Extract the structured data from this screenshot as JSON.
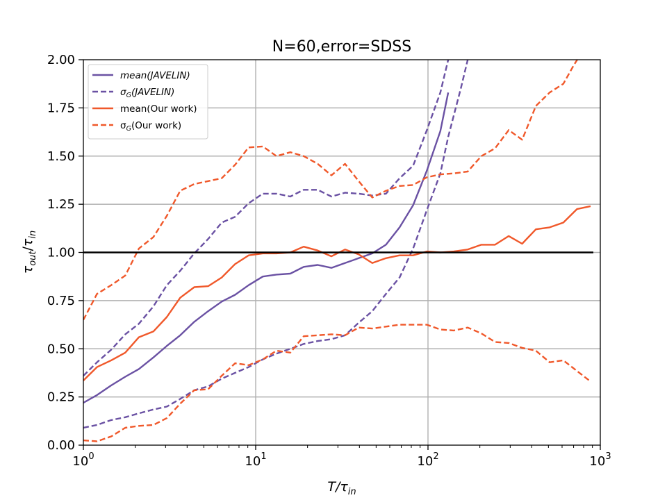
{
  "chart_data": {
    "type": "line",
    "title": "N=60,error=SDSS",
    "xlabel": {
      "base": "T/τ",
      "sub": "in"
    },
    "ylabel": {
      "num": "τ",
      "num_sub": "out",
      "den": "τ",
      "den_sub": "in"
    },
    "xscale": "log",
    "xlim": [
      1,
      1000
    ],
    "ylim": [
      0,
      2.0
    ],
    "xticks": [
      {
        "base": "10",
        "exp": "0"
      },
      {
        "base": "10",
        "exp": "1"
      },
      {
        "base": "10",
        "exp": "2"
      },
      {
        "base": "10",
        "exp": "3"
      }
    ],
    "yticks": [
      "0.00",
      "0.25",
      "0.50",
      "0.75",
      "1.00",
      "1.25",
      "1.50",
      "1.75",
      "2.00"
    ],
    "grid": true,
    "legend_position": "top-left",
    "reference_line": {
      "y": 1.0,
      "color": "#000000"
    },
    "colors": {
      "javelin": "#6a51a3",
      "ours": "#f0582a"
    },
    "series": [
      {
        "name": "mean(JAVELIN)",
        "legend": {
          "prefix": "mean",
          "sub": "",
          "suffix": "(JAVELIN)",
          "italic": true
        },
        "style": "solid",
        "color": "#6a51a3",
        "x": [
          1.0,
          1.2,
          1.45,
          1.75,
          2.1,
          2.55,
          3.05,
          3.65,
          4.4,
          5.3,
          6.35,
          7.6,
          9.1,
          11.0,
          13.2,
          15.9,
          19.0,
          22.9,
          27.5,
          33.0,
          39.6,
          47.5,
          57.0,
          68.4,
          82.0,
          98.5,
          118.0,
          131.0
        ],
        "y": [
          0.22,
          0.26,
          0.31,
          0.355,
          0.395,
          0.455,
          0.515,
          0.57,
          0.64,
          0.695,
          0.745,
          0.78,
          0.83,
          0.875,
          0.885,
          0.89,
          0.925,
          0.935,
          0.92,
          0.945,
          0.97,
          0.995,
          1.04,
          1.13,
          1.245,
          1.425,
          1.63,
          1.83
        ]
      },
      {
        "name": "σG(JAVELIN) upper",
        "legend": {
          "prefix": "σ",
          "sub": "G",
          "suffix": "(JAVELIN)",
          "italic": true
        },
        "style": "dashed",
        "color": "#6a51a3",
        "x": [
          1.0,
          1.2,
          1.45,
          1.75,
          2.1,
          2.55,
          3.05,
          3.65,
          4.4,
          5.3,
          6.35,
          7.6,
          9.1,
          11.0,
          13.2,
          15.9,
          19.0,
          22.9,
          27.5,
          33.0,
          39.6,
          47.5,
          57.0,
          68.4,
          82.0,
          98.5,
          118.0,
          131.0,
          155.0
        ],
        "y": [
          0.36,
          0.43,
          0.495,
          0.575,
          0.63,
          0.72,
          0.83,
          0.905,
          0.995,
          1.07,
          1.155,
          1.185,
          1.255,
          1.305,
          1.305,
          1.29,
          1.325,
          1.325,
          1.29,
          1.31,
          1.305,
          1.295,
          1.305,
          1.385,
          1.45,
          1.635,
          1.83,
          2.0,
          2.2
        ]
      },
      {
        "name": "σG(JAVELIN) lower",
        "style": "dashed",
        "color": "#6a51a3",
        "x": [
          1.0,
          1.2,
          1.45,
          1.75,
          2.1,
          2.55,
          3.05,
          3.65,
          4.4,
          5.3,
          6.35,
          7.6,
          9.1,
          11.0,
          13.2,
          15.9,
          19.0,
          22.9,
          27.5,
          33.0,
          39.6,
          47.5,
          57.0,
          68.4,
          82.0,
          98.5,
          118.0,
          131.0,
          155.0,
          170.0
        ],
        "y": [
          0.09,
          0.105,
          0.13,
          0.145,
          0.165,
          0.185,
          0.2,
          0.24,
          0.285,
          0.305,
          0.345,
          0.375,
          0.405,
          0.445,
          0.475,
          0.5,
          0.525,
          0.54,
          0.55,
          0.57,
          0.635,
          0.695,
          0.785,
          0.87,
          1.02,
          1.22,
          1.41,
          1.6,
          1.85,
          2.0
        ]
      },
      {
        "name": "mean(Our work)",
        "legend": {
          "prefix": "mean",
          "sub": "",
          "suffix": "(Our work)",
          "italic": false
        },
        "style": "solid",
        "color": "#f0582a",
        "x": [
          1.0,
          1.2,
          1.45,
          1.75,
          2.1,
          2.55,
          3.05,
          3.65,
          4.4,
          5.3,
          6.35,
          7.6,
          9.1,
          11.0,
          13.2,
          15.9,
          19.0,
          22.9,
          27.5,
          33.0,
          39.6,
          47.5,
          57.0,
          68.4,
          82.0,
          98.5,
          118.0,
          141.0,
          170.0,
          204.0,
          245.0,
          294.0,
          352.0,
          423.0,
          508.0,
          610.0,
          732.0,
          878.0
        ],
        "y": [
          0.335,
          0.405,
          0.44,
          0.48,
          0.56,
          0.59,
          0.665,
          0.765,
          0.82,
          0.825,
          0.87,
          0.94,
          0.985,
          0.995,
          0.995,
          1.0,
          1.03,
          1.01,
          0.98,
          1.015,
          0.99,
          0.945,
          0.97,
          0.985,
          0.985,
          1.005,
          1.0,
          1.005,
          1.015,
          1.04,
          1.04,
          1.085,
          1.045,
          1.12,
          1.13,
          1.155,
          1.225,
          1.24
        ]
      },
      {
        "name": "σG(Our work) upper",
        "legend": {
          "prefix": "σ",
          "sub": "G",
          "suffix": "(Our work)",
          "italic": false
        },
        "style": "dashed",
        "color": "#f0582a",
        "x": [
          1.0,
          1.2,
          1.45,
          1.75,
          2.1,
          2.55,
          3.05,
          3.65,
          4.4,
          5.3,
          6.35,
          7.6,
          9.1,
          11.0,
          13.2,
          15.9,
          19.0,
          22.9,
          27.5,
          33.0,
          39.6,
          47.5,
          57.0,
          68.4,
          82.0,
          98.5,
          118.0,
          141.0,
          170.0,
          204.0,
          245.0,
          294.0,
          352.0,
          423.0,
          508.0,
          610.0,
          700.0,
          735.0
        ],
        "y": [
          0.65,
          0.785,
          0.83,
          0.88,
          1.02,
          1.08,
          1.19,
          1.32,
          1.355,
          1.37,
          1.385,
          1.455,
          1.545,
          1.55,
          1.5,
          1.52,
          1.5,
          1.46,
          1.4,
          1.46,
          1.37,
          1.285,
          1.32,
          1.345,
          1.35,
          1.39,
          1.405,
          1.41,
          1.42,
          1.5,
          1.54,
          1.635,
          1.585,
          1.76,
          1.83,
          1.875,
          1.97,
          2.0
        ]
      },
      {
        "name": "σG(Our work) lower",
        "style": "dashed",
        "color": "#f0582a",
        "x": [
          1.0,
          1.2,
          1.45,
          1.75,
          2.1,
          2.55,
          3.05,
          3.65,
          4.4,
          5.3,
          6.35,
          7.6,
          9.1,
          11.0,
          13.2,
          15.9,
          19.0,
          22.9,
          27.5,
          33.0,
          39.6,
          47.5,
          57.0,
          68.4,
          82.0,
          98.5,
          118.0,
          141.0,
          170.0,
          204.0,
          245.0,
          294.0,
          352.0,
          423.0,
          508.0,
          610.0,
          732.0,
          878.0
        ],
        "y": [
          0.025,
          0.02,
          0.045,
          0.09,
          0.1,
          0.105,
          0.14,
          0.215,
          0.285,
          0.29,
          0.36,
          0.425,
          0.415,
          0.445,
          0.49,
          0.48,
          0.565,
          0.57,
          0.575,
          0.57,
          0.61,
          0.605,
          0.615,
          0.625,
          0.625,
          0.625,
          0.6,
          0.595,
          0.61,
          0.58,
          0.535,
          0.53,
          0.505,
          0.49,
          0.43,
          0.44,
          0.385,
          0.33
        ]
      }
    ]
  }
}
